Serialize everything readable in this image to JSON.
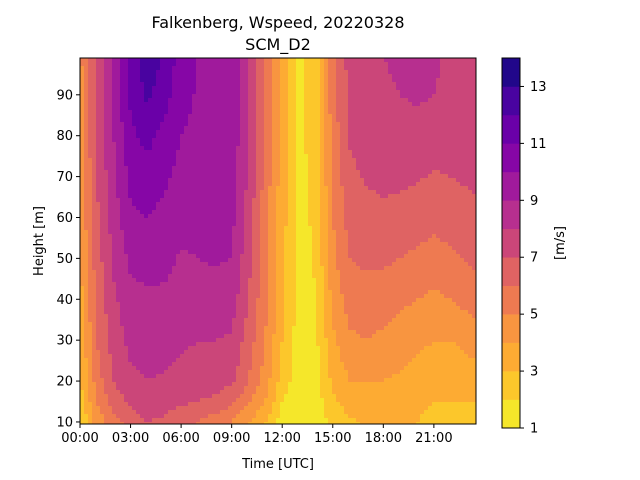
{
  "chart_data": {
    "type": "heatmap",
    "title_line1": "Falkenberg, Wspeed, 20220328",
    "title_line2": "SCM_D2",
    "xlabel": "Time [UTC]",
    "ylabel": "Height [m]",
    "colorbar_label": "[m/s]",
    "x_ticks": [
      "00:00",
      "03:00",
      "06:00",
      "09:00",
      "12:00",
      "15:00",
      "18:00",
      "21:00"
    ],
    "y_ticks": [
      "10",
      "20",
      "30",
      "40",
      "50",
      "60",
      "70",
      "80",
      "90"
    ],
    "colorbar_ticks": [
      "1",
      "3",
      "5",
      "7",
      "9",
      "11",
      "13"
    ],
    "x_range_hours": [
      0,
      23.5
    ],
    "y_range_m": [
      9.5,
      99
    ],
    "levels": [
      1,
      2,
      3,
      4,
      5,
      6,
      7,
      8,
      9,
      10,
      11,
      12,
      13,
      14
    ],
    "colors": [
      "#f5e72a",
      "#fcc72b",
      "#fdab33",
      "#f89540",
      "#ee7a51",
      "#df6363",
      "#cb4679",
      "#b72f8f",
      "#a01a9c",
      "#8606a6",
      "#6a00a8",
      "#4903a0",
      "#21078a"
    ],
    "times": [
      0,
      1,
      2,
      3,
      4,
      5,
      6,
      7,
      8,
      9,
      10,
      11,
      12,
      13,
      14,
      15,
      16,
      17,
      18,
      19,
      20,
      21,
      22,
      23.5
    ],
    "heights": [
      10,
      15,
      20,
      30,
      40,
      50,
      60,
      70,
      80,
      90,
      99
    ],
    "values": [
      [
        1.8,
        4.5,
        5.5,
        6.5,
        7.0,
        6.8,
        6.4,
        6.0,
        5.5,
        5.0,
        4.0,
        3.0,
        1.5,
        1.2,
        1.5,
        2.2,
        2.8,
        3.2,
        3.2,
        3.3,
        3.0,
        2.8,
        2.6,
        2.5
      ],
      [
        2.5,
        5.0,
        6.5,
        7.2,
        7.6,
        7.4,
        7.2,
        7.0,
        6.8,
        6.3,
        5.2,
        4.0,
        2.0,
        1.5,
        1.5,
        2.8,
        3.5,
        3.5,
        3.5,
        3.5,
        3.2,
        3.0,
        3.0,
        3.0
      ],
      [
        2.8,
        5.5,
        7.0,
        7.8,
        8.0,
        7.9,
        7.7,
        7.5,
        7.4,
        7.2,
        6.0,
        4.5,
        2.5,
        1.5,
        1.6,
        3.2,
        4.0,
        4.0,
        4.0,
        3.8,
        3.5,
        3.3,
        3.3,
        3.5
      ],
      [
        3.2,
        6.0,
        7.5,
        8.3,
        8.4,
        8.4,
        8.2,
        8.0,
        8.0,
        7.9,
        6.5,
        5.0,
        3.0,
        1.5,
        1.8,
        3.8,
        4.8,
        5.0,
        4.8,
        4.6,
        4.3,
        4.0,
        4.0,
        4.5
      ],
      [
        3.6,
        6.3,
        7.8,
        8.7,
        8.8,
        8.8,
        8.6,
        8.5,
        8.6,
        8.5,
        7.0,
        5.2,
        3.2,
        1.6,
        2.0,
        4.3,
        5.5,
        5.6,
        5.5,
        5.2,
        5.0,
        4.8,
        5.0,
        5.5
      ],
      [
        3.9,
        6.5,
        8.2,
        9.2,
        9.4,
        9.3,
        8.9,
        9.0,
        9.1,
        9.0,
        7.3,
        5.4,
        3.3,
        1.6,
        2.1,
        4.7,
        6.0,
        6.2,
        6.2,
        6.0,
        5.8,
        5.6,
        5.8,
        6.2
      ],
      [
        4.1,
        6.8,
        8.5,
        9.8,
        10.0,
        9.7,
        9.3,
        9.4,
        9.5,
        9.3,
        7.6,
        5.5,
        3.4,
        1.7,
        2.2,
        5.0,
        6.4,
        6.7,
        6.8,
        6.7,
        6.5,
        6.3,
        6.5,
        6.8
      ],
      [
        4.3,
        7.0,
        8.8,
        10.3,
        10.6,
        10.2,
        9.7,
        9.6,
        9.8,
        9.6,
        7.8,
        5.6,
        3.5,
        1.7,
        2.3,
        5.2,
        6.8,
        7.1,
        7.2,
        7.2,
        7.1,
        6.9,
        7.0,
        7.2
      ],
      [
        4.5,
        7.2,
        9.0,
        10.8,
        11.3,
        10.7,
        10.0,
        9.8,
        9.9,
        9.7,
        7.9,
        5.7,
        3.5,
        1.8,
        2.4,
        5.4,
        7.1,
        7.4,
        7.6,
        7.7,
        7.8,
        7.6,
        7.4,
        7.3
      ],
      [
        4.6,
        7.3,
        9.2,
        11.2,
        12.2,
        11.4,
        10.3,
        9.9,
        10.0,
        9.8,
        8.0,
        5.8,
        3.6,
        1.8,
        2.4,
        5.6,
        7.3,
        7.6,
        7.9,
        8.0,
        8.1,
        8.0,
        7.8,
        7.6
      ],
      [
        4.7,
        7.4,
        9.3,
        11.4,
        12.7,
        11.8,
        10.5,
        10.0,
        10.0,
        9.9,
        8.1,
        5.9,
        3.6,
        1.8,
        2.5,
        5.7,
        7.4,
        7.7,
        8.0,
        8.1,
        8.2,
        8.1,
        7.9,
        7.7
      ]
    ]
  }
}
